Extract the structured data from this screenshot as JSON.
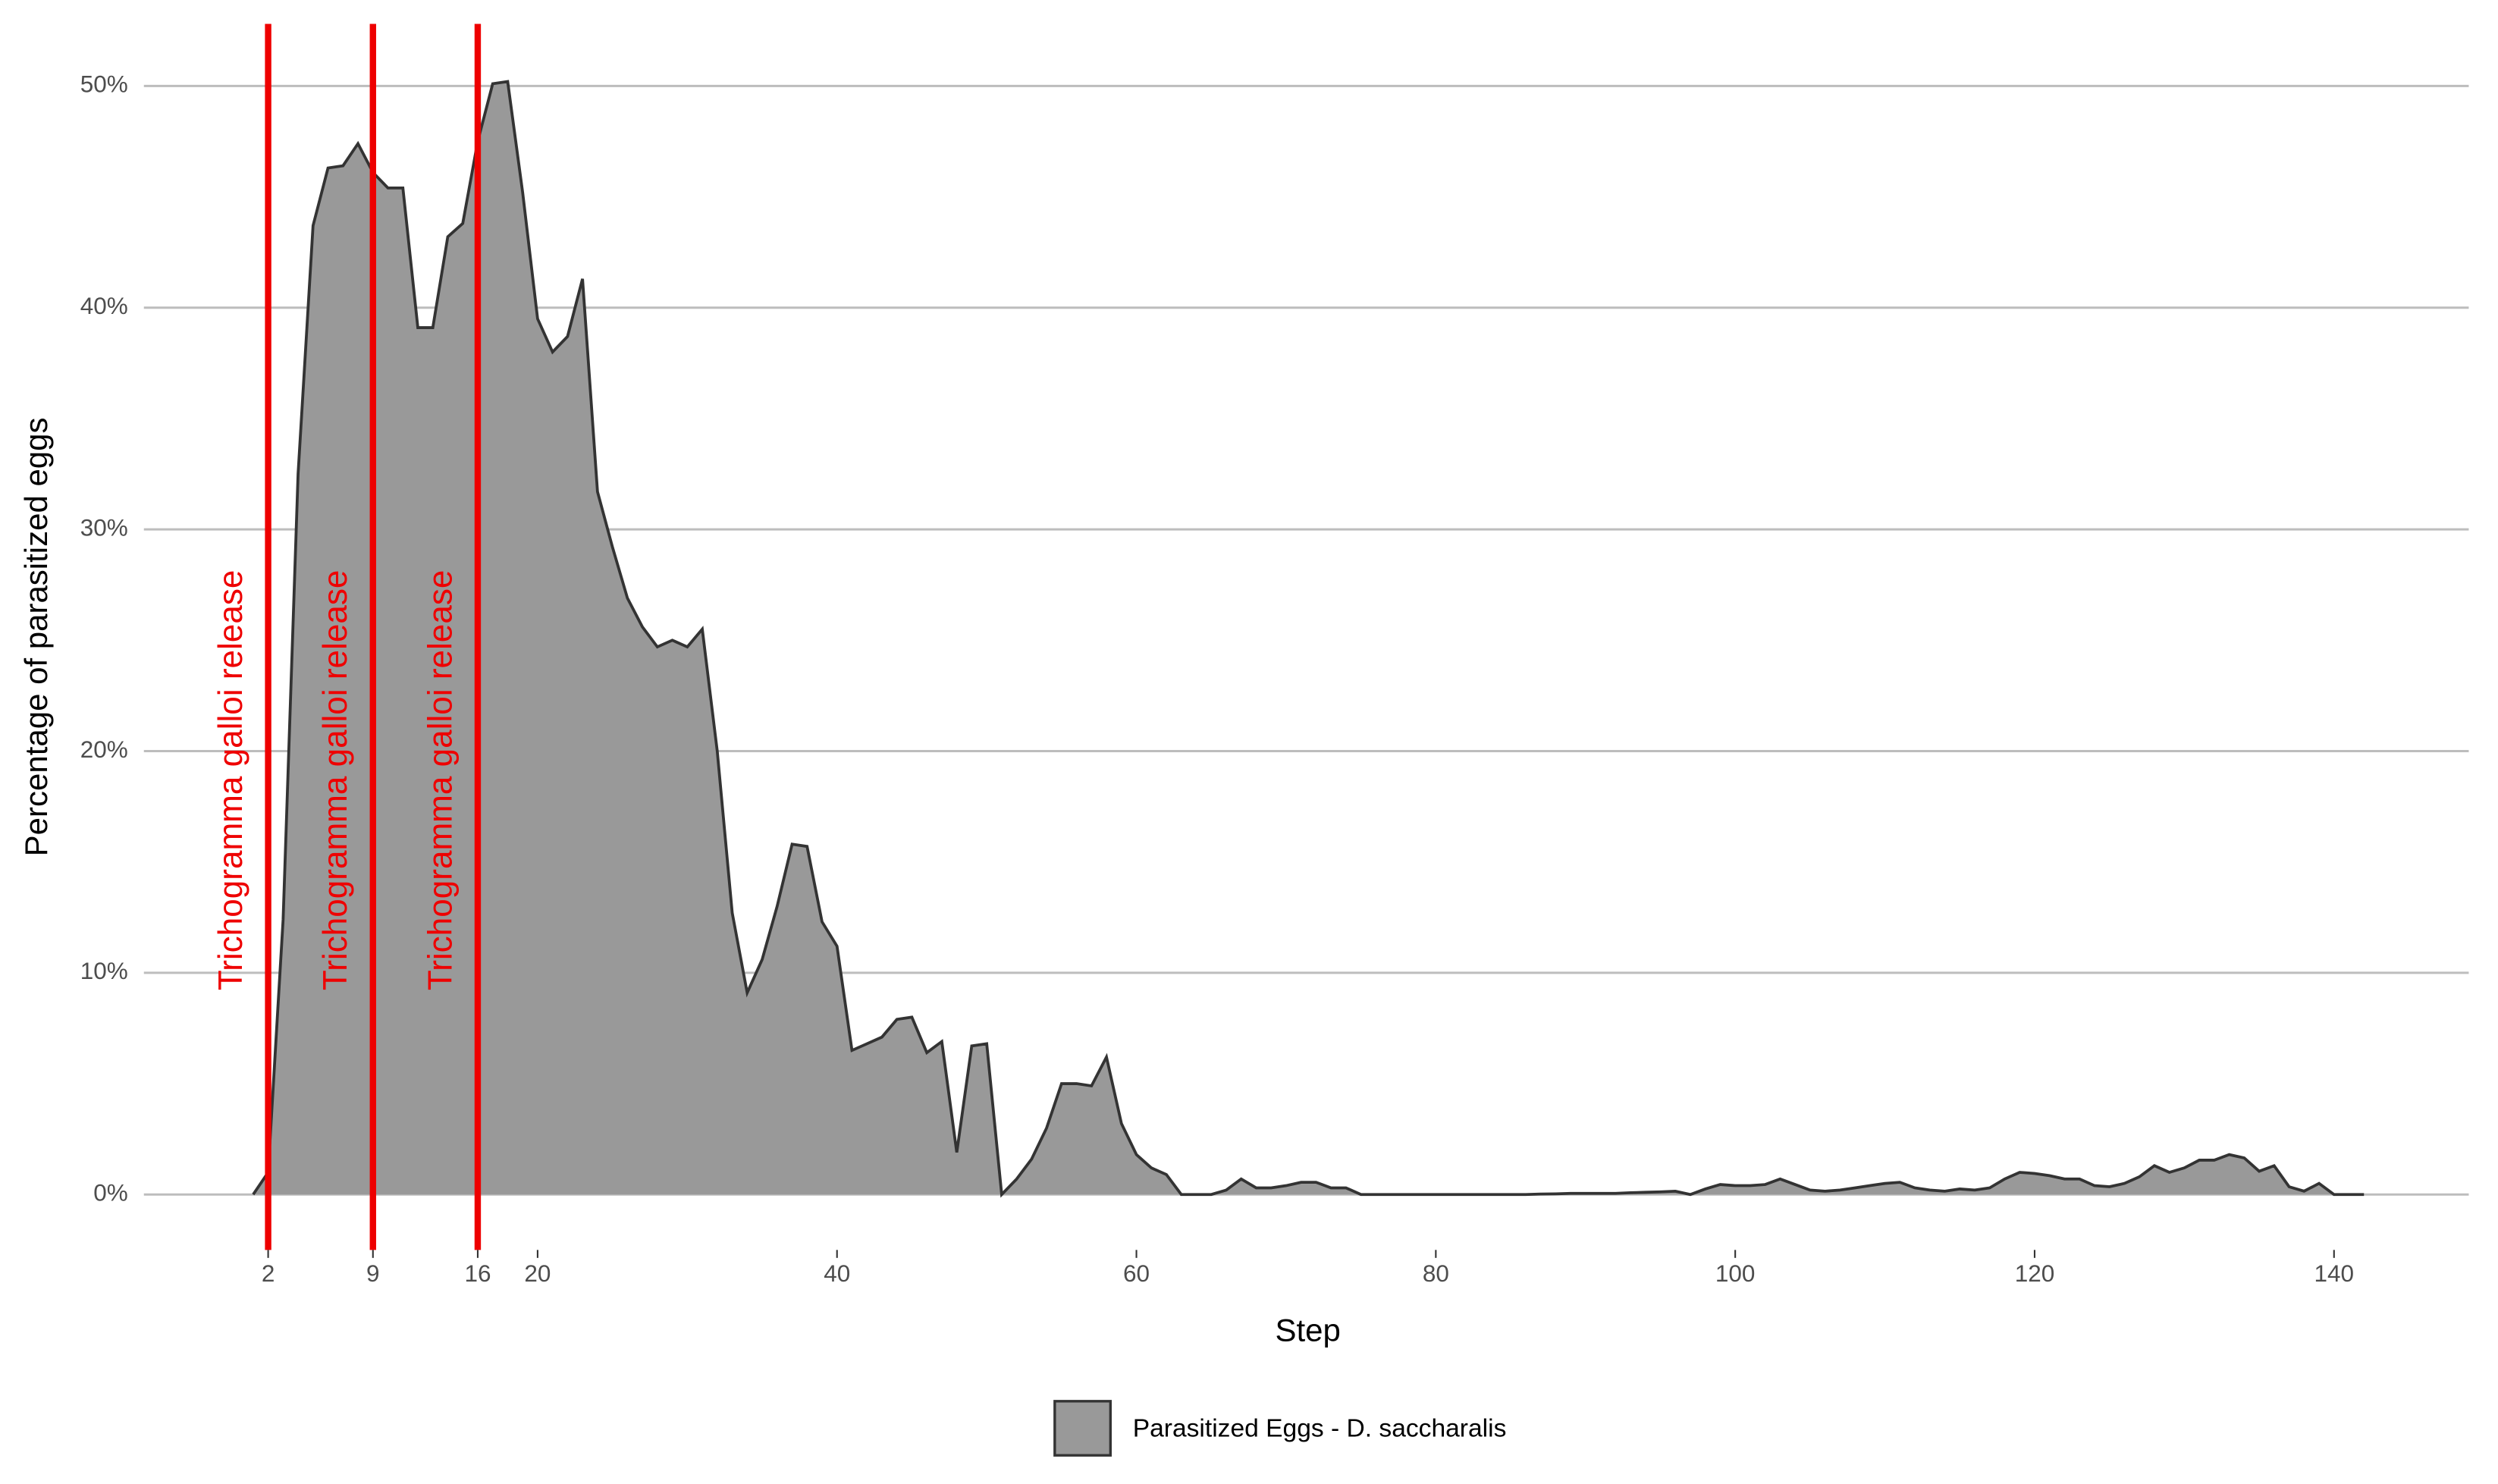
{
  "chart_data": {
    "type": "area",
    "x_label": "Step",
    "y_label": "Percentage of parasitized eggs",
    "x": [
      1,
      2,
      3,
      4,
      5,
      6,
      7,
      8,
      9,
      10,
      11,
      12,
      13,
      14,
      15,
      16,
      17,
      18,
      19,
      20,
      21,
      22,
      23,
      24,
      25,
      26,
      27,
      28,
      29,
      30,
      31,
      32,
      33,
      34,
      35,
      36,
      37,
      38,
      39,
      40,
      41,
      42,
      43,
      44,
      45,
      46,
      47,
      48,
      49,
      50,
      51,
      52,
      53,
      54,
      55,
      56,
      57,
      58,
      59,
      60,
      61,
      62,
      63,
      64,
      65,
      66,
      67,
      68,
      69,
      70,
      71,
      72,
      73,
      74,
      75,
      76,
      77,
      78,
      79,
      80,
      81,
      82,
      83,
      84,
      85,
      86,
      87,
      88,
      89,
      90,
      91,
      92,
      93,
      94,
      95,
      96,
      97,
      98,
      99,
      100,
      101,
      102,
      103,
      104,
      105,
      106,
      107,
      108,
      109,
      110,
      111,
      112,
      113,
      114,
      115,
      116,
      117,
      118,
      119,
      120,
      121,
      122,
      123,
      124,
      125,
      126,
      127,
      128,
      129,
      130,
      131,
      132,
      133,
      134,
      135,
      136,
      137,
      138,
      139,
      140,
      141,
      142
    ],
    "series": [
      {
        "name": "Parasitized Eggs - D. saccharalis",
        "color": "#999999",
        "stroke": "#333333",
        "values": [
          0,
          1,
          12.4,
          32.5,
          43.7,
          46.3,
          46.4,
          47.4,
          46.1,
          45.4,
          45.4,
          39.1,
          39.1,
          43.2,
          43.8,
          47.5,
          50.1,
          50.2,
          45.2,
          39.5,
          38.0,
          38.7,
          41.3,
          31.7,
          29.2,
          26.9,
          25.6,
          24.7,
          25.0,
          24.7,
          25.5,
          20.0,
          12.7,
          9.1,
          10.6,
          13.0,
          15.8,
          15.7,
          12.3,
          11.2,
          6.5,
          6.8,
          7.1,
          7.9,
          8.0,
          6.4,
          6.9,
          1.9,
          6.7,
          6.8,
          0,
          0.7,
          1.6,
          3.0,
          5.0,
          5.0,
          4.9,
          6.2,
          3.2,
          1.8,
          1.2,
          0.9,
          0,
          0,
          0,
          0.2,
          0.7,
          0.3,
          0.3,
          0.4,
          0.55,
          0.55,
          0.3,
          0.3,
          0,
          0,
          0,
          0,
          0,
          0,
          0,
          0,
          0,
          0,
          0,
          0,
          0.02,
          0.03,
          0.05,
          0.05,
          0.05,
          0.05,
          0.08,
          0.1,
          0.12,
          0.15,
          0,
          0.25,
          0.45,
          0.4,
          0.4,
          0.45,
          0.7,
          0.45,
          0.2,
          0.15,
          0.2,
          0.3,
          0.4,
          0.5,
          0.55,
          0.3,
          0.2,
          0.15,
          0.25,
          0.2,
          0.3,
          0.7,
          1.0,
          0.95,
          0.85,
          0.7,
          0.7,
          0.4,
          0.35,
          0.5,
          0.8,
          1.3,
          1.0,
          1.2,
          1.55,
          1.55,
          1.8,
          1.65,
          1.05,
          1.3,
          0.35,
          0.15,
          0.5,
          0,
          0,
          0
        ]
      }
    ],
    "annotations": [
      {
        "x": 2,
        "label": "Trichogramma galloi release",
        "color": "#ee0000"
      },
      {
        "x": 9,
        "label": "Trichogramma galloi release",
        "color": "#ee0000"
      },
      {
        "x": 16,
        "label": "Trichogramma galloi release",
        "color": "#ee0000"
      }
    ],
    "xlim": [
      -6.3,
      149
    ],
    "ylim": [
      -2.5,
      52.8
    ],
    "xticks": [
      2,
      9,
      16,
      20,
      40,
      60,
      80,
      100,
      120,
      140
    ],
    "yticks": [
      {
        "value": 0,
        "label": "0%"
      },
      {
        "value": 10,
        "label": "10%"
      },
      {
        "value": 20,
        "label": "20%"
      },
      {
        "value": 30,
        "label": "30%"
      },
      {
        "value": 40,
        "label": "40%"
      },
      {
        "value": 50,
        "label": "50%"
      }
    ],
    "grid": true,
    "legend": "bottom"
  }
}
